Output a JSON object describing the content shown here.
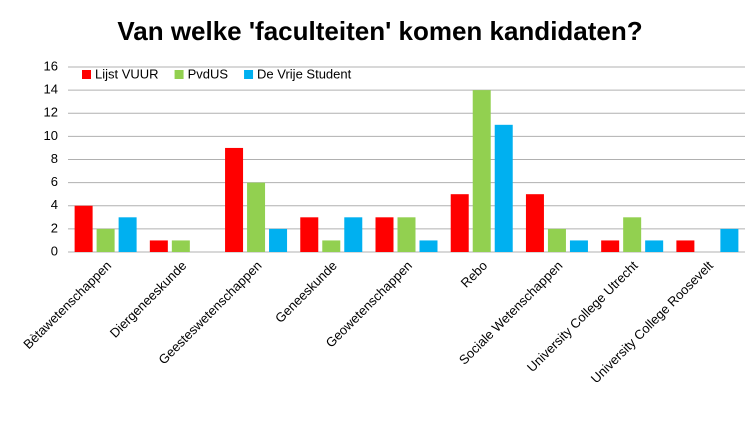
{
  "chart_data": {
    "type": "bar",
    "title": "Van welke 'faculteiten' komen kandidaten?",
    "categories": [
      "Bètawetenschappen",
      "Diergeneeskunde",
      "Geesteswetenschappen",
      "Geneeskunde",
      "Geowetenschappen",
      "Rebo",
      "Sociale Wetenschappen",
      "University College Utrecht",
      "University College Roosevelt"
    ],
    "series": [
      {
        "name": "Lijst VUUR",
        "color": "#ff0000",
        "values": [
          4,
          1,
          9,
          3,
          3,
          5,
          5,
          1,
          1
        ]
      },
      {
        "name": "PvdUS",
        "color": "#92d050",
        "values": [
          2,
          1,
          6,
          1,
          3,
          14,
          2,
          3,
          0
        ]
      },
      {
        "name": "De Vrije Student",
        "color": "#00b0f0",
        "values": [
          3,
          0,
          2,
          3,
          1,
          11,
          1,
          1,
          2
        ]
      }
    ],
    "ylim": [
      0,
      16
    ],
    "yticks": [
      0,
      2,
      4,
      6,
      8,
      10,
      12,
      14,
      16
    ],
    "grid": true,
    "legend": "top-left"
  }
}
